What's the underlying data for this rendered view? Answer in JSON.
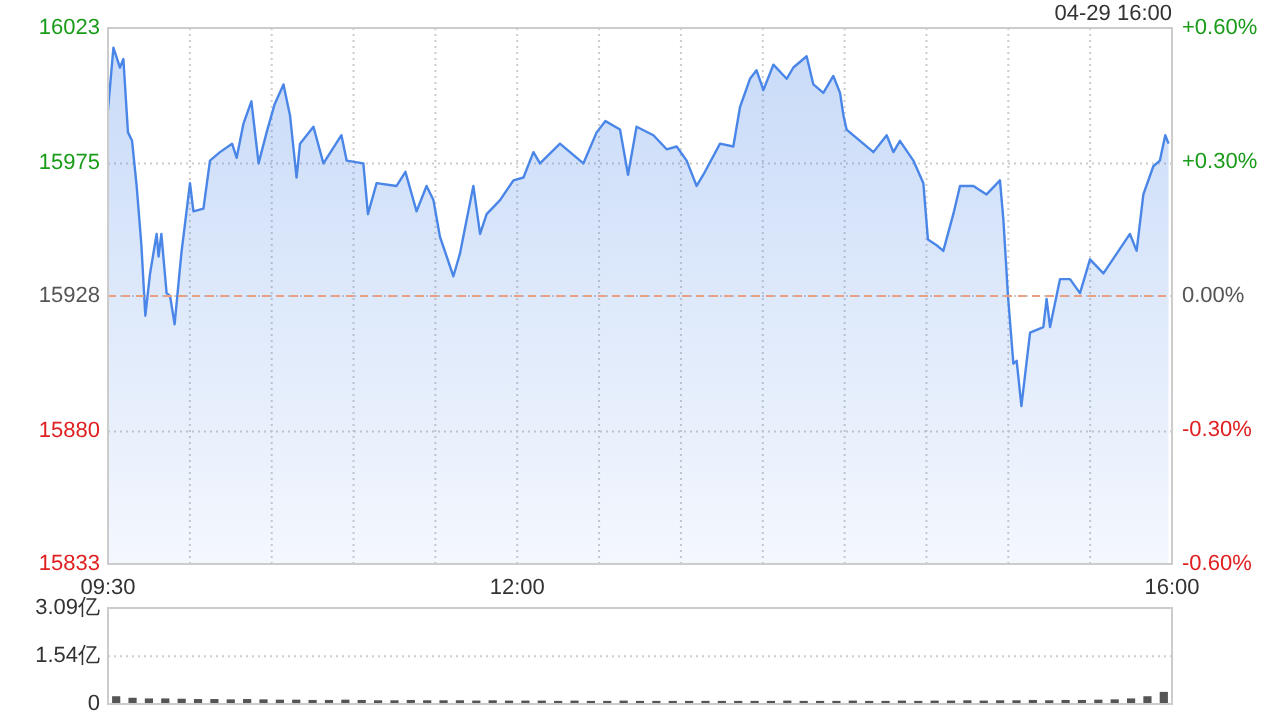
{
  "chart_data": [
    {
      "type": "area",
      "annotations": [
        "04-29 16:00"
      ],
      "x": [
        9.5,
        9.533,
        9.573,
        9.594,
        9.622,
        9.647,
        9.675,
        9.704,
        9.728,
        9.757,
        9.797,
        9.809,
        9.826,
        9.858,
        9.879,
        9.907,
        9.948,
        10.001,
        10.022,
        10.083,
        10.123,
        10.184,
        10.258,
        10.286,
        10.327,
        10.376,
        10.42,
        10.469,
        10.518,
        10.572,
        10.612,
        10.652,
        10.673,
        10.755,
        10.816,
        10.926,
        10.958,
        11.06,
        11.088,
        11.141,
        11.263,
        11.317,
        11.385,
        11.446,
        11.488,
        11.528,
        11.61,
        11.65,
        11.691,
        11.732,
        11.773,
        11.813,
        11.895,
        11.977,
        12.038,
        12.099,
        12.139,
        12.261,
        12.404,
        12.485,
        12.539,
        12.628,
        12.677,
        12.729,
        12.832,
        12.913,
        12.974,
        13.035,
        13.096,
        13.137,
        13.239,
        13.32,
        13.361,
        13.422,
        13.462,
        13.504,
        13.565,
        13.646,
        13.687,
        13.768,
        13.809,
        13.87,
        13.931,
        13.972,
        13.993,
        14.012,
        14.094,
        14.176,
        14.257,
        14.298,
        14.338,
        14.42,
        14.481,
        14.509,
        14.562,
        14.603,
        14.664,
        14.705,
        14.787,
        14.867,
        14.949,
        14.97,
        14.998,
        15.031,
        15.051,
        15.08,
        15.133,
        15.214,
        15.234,
        15.255,
        15.316,
        15.377,
        15.438,
        15.499,
        15.581,
        15.662,
        15.743,
        15.784,
        15.825,
        15.886,
        15.926,
        15.959,
        15.979
      ],
      "series": [
        {
          "color": "#4a86e8",
          "values": [
            15994,
            16016,
            16009,
            16012,
            15986,
            15983,
            15967,
            15946,
            15921,
            15936,
            15950,
            15942,
            15950,
            15929,
            15928,
            15918,
            15943,
            15968,
            15958,
            15959,
            15976,
            15979,
            15982,
            15977,
            15989,
            15997,
            15975,
            15986,
            15996,
            16003,
            15992,
            15970,
            15982,
            15988,
            15975,
            15985,
            15976,
            15975,
            15957,
            15968,
            15967,
            15972,
            15958,
            15967,
            15962,
            15949,
            15935,
            15943,
            15955,
            15967,
            15950,
            15957,
            15962,
            15969,
            15970,
            15979,
            15975,
            15982,
            15975,
            15986,
            15990,
            15987,
            15971,
            15988,
            15985,
            15980,
            15981,
            15976,
            15967,
            15971,
            15982,
            15981,
            15995,
            16005,
            16008,
            16001,
            16010,
            16005,
            16009,
            16013,
            16003,
            16000,
            16006,
            16000,
            15992,
            15987,
            15983,
            15979,
            15985,
            15979,
            15983,
            15976,
            15968,
            15948,
            15946,
            15944,
            15957,
            15967,
            15967,
            15964,
            15969,
            15955,
            15928,
            15904,
            15905,
            15889,
            15915,
            15917,
            15927,
            15917,
            15934,
            15934,
            15929,
            15941,
            15936,
            15943,
            15950,
            15944,
            15964,
            15974,
            15976,
            15985,
            15982
          ]
        }
      ],
      "xlim": [
        9.5,
        16
      ],
      "xticks": [
        {
          "value": 9.5,
          "label": "09:30"
        },
        {
          "value": 10,
          "label": null
        },
        {
          "value": 10.5,
          "label": null
        },
        {
          "value": 11,
          "label": null
        },
        {
          "value": 11.5,
          "label": null
        },
        {
          "value": 12,
          "label": "12:00"
        },
        {
          "value": 12.5,
          "label": null
        },
        {
          "value": 13,
          "label": null
        },
        {
          "value": 13.5,
          "label": null
        },
        {
          "value": 14,
          "label": null
        },
        {
          "value": 14.5,
          "label": null
        },
        {
          "value": 15,
          "label": null
        },
        {
          "value": 15.5,
          "label": null
        },
        {
          "value": 16,
          "label": "16:00"
        }
      ],
      "ylim": [
        15833,
        16023
      ],
      "yticks": [
        15833,
        15880,
        15928,
        15975,
        16023
      ],
      "y2lim": [
        -0.6,
        0.6
      ],
      "y2ticks": [
        {
          "value": -0.6,
          "label": "-0.60%"
        },
        {
          "value": -0.3,
          "label": "-0.30%"
        },
        {
          "value": 0,
          "label": "0.00%"
        },
        {
          "value": 0.3,
          "label": "+0.30%"
        },
        {
          "value": 0.6,
          "label": "+0.60%"
        }
      ],
      "ref_lines": [
        {
          "axis": "y",
          "value": 15928,
          "color": "#e8a080",
          "line_style": "dashed"
        }
      ],
      "grid": true
    },
    {
      "type": "bar",
      "color": "#555555",
      "tick_labels": "y",
      "grid": "y",
      "x": [
        9.55,
        9.65,
        9.75,
        9.85,
        9.95,
        10.05,
        10.15,
        10.25,
        10.35,
        10.45,
        10.55,
        10.65,
        10.75,
        10.85,
        10.95,
        11.05,
        11.15,
        11.25,
        11.35,
        11.45,
        11.55,
        11.65,
        11.75,
        11.85,
        11.95,
        12.05,
        12.15,
        12.25,
        12.35,
        12.45,
        12.55,
        12.65,
        12.75,
        12.85,
        12.95,
        13.05,
        13.15,
        13.25,
        13.35,
        13.45,
        13.55,
        13.65,
        13.75,
        13.85,
        13.95,
        14.05,
        14.15,
        14.25,
        14.35,
        14.45,
        14.55,
        14.65,
        14.75,
        14.85,
        14.95,
        15.05,
        15.15,
        15.25,
        15.35,
        15.45,
        15.55,
        15.65,
        15.75,
        15.85,
        15.95
      ],
      "values": [
        0.25,
        0.2,
        0.18,
        0.18,
        0.17,
        0.16,
        0.16,
        0.15,
        0.16,
        0.15,
        0.14,
        0.14,
        0.13,
        0.13,
        0.14,
        0.13,
        0.12,
        0.12,
        0.13,
        0.12,
        0.12,
        0.12,
        0.11,
        0.12,
        0.11,
        0.11,
        0.11,
        0.1,
        0.11,
        0.1,
        0.1,
        0.11,
        0.1,
        0.1,
        0.1,
        0.1,
        0.1,
        0.1,
        0.1,
        0.1,
        0.1,
        0.11,
        0.1,
        0.1,
        0.1,
        0.11,
        0.1,
        0.1,
        0.11,
        0.1,
        0.11,
        0.11,
        0.12,
        0.11,
        0.12,
        0.12,
        0.13,
        0.12,
        0.13,
        0.13,
        0.14,
        0.15,
        0.18,
        0.25,
        0.39
      ],
      "xlim": [
        9.5,
        16
      ],
      "ylim": [
        0,
        3.09
      ],
      "yticks": [
        0,
        {
          "value": 1.54,
          "label": "1.54亿"
        },
        {
          "value": 3.09,
          "label": "3.09亿"
        }
      ]
    }
  ]
}
